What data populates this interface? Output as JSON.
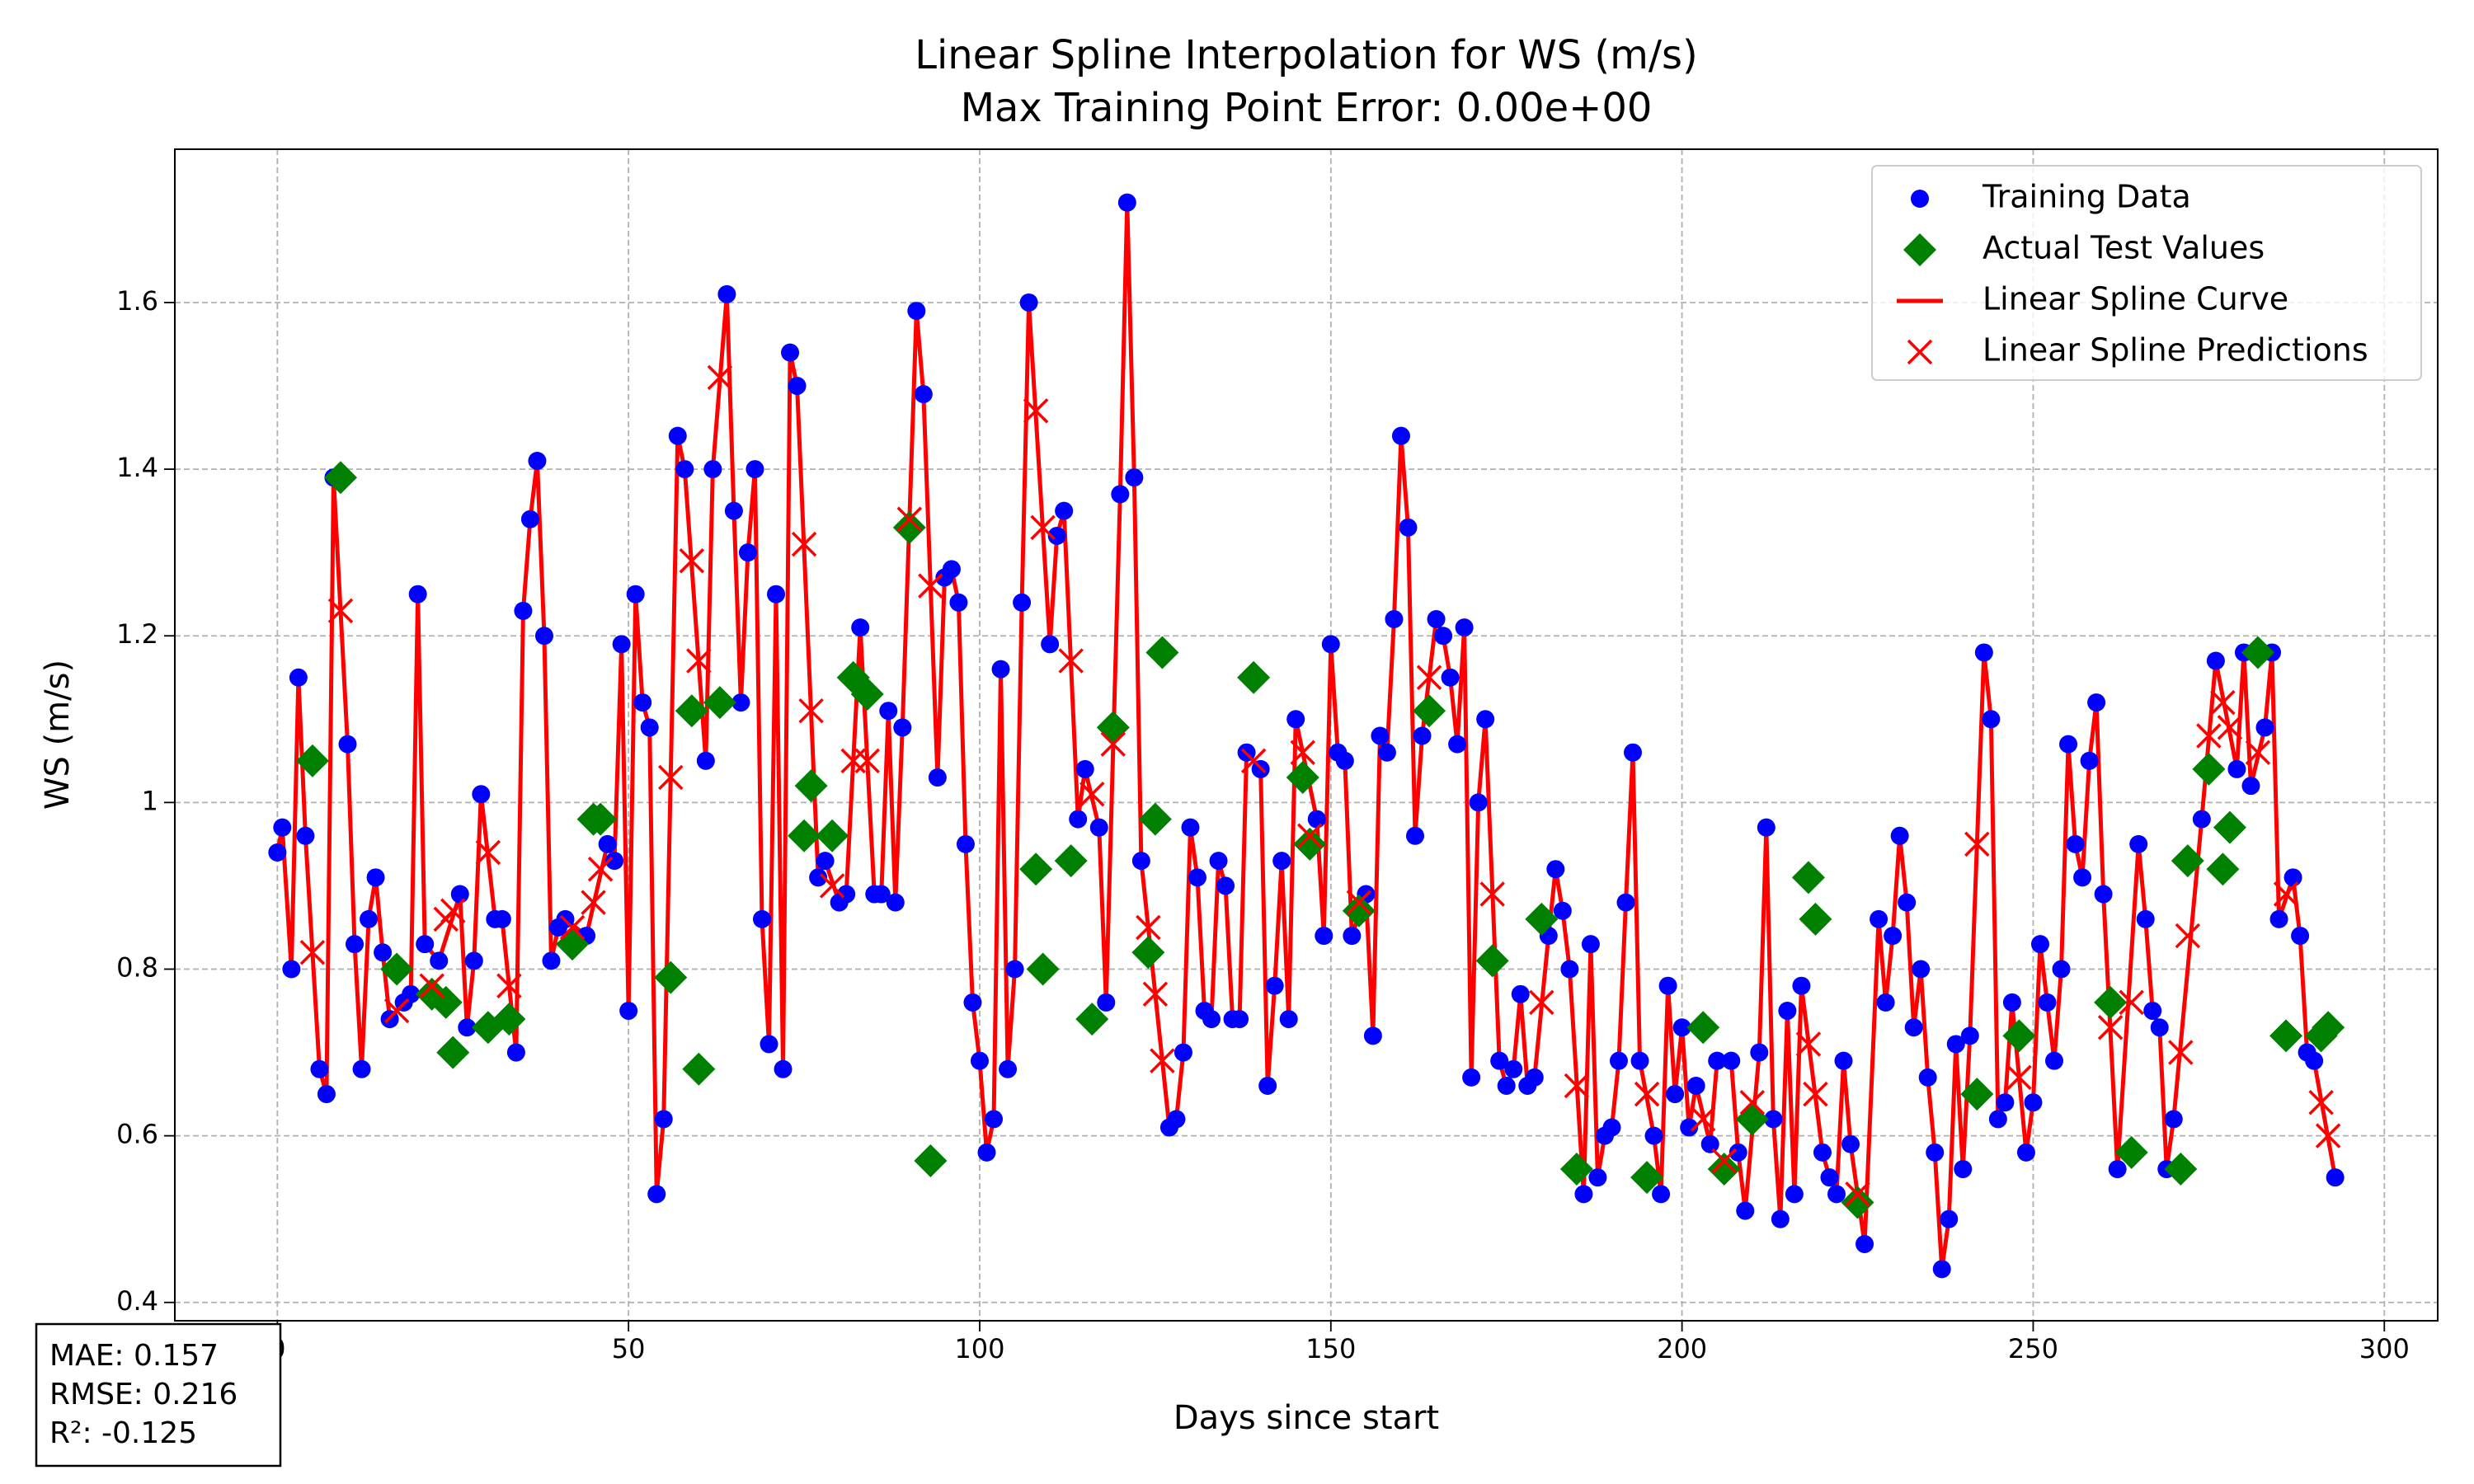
{
  "chart_data": {
    "type": "scatter",
    "title": "Linear Spline Interpolation for WS (m/s)",
    "subtitle": "Max Training Point Error: 0.00e+00",
    "xlabel": "Days since start",
    "ylabel": "WS (m/s)",
    "xlim": [
      -14.6,
      307.6
    ],
    "ylim": [
      0.378,
      1.784
    ],
    "xticks": [
      0,
      50,
      100,
      150,
      200,
      250,
      300
    ],
    "yticks": [
      0.4,
      0.6,
      0.8,
      1.0,
      1.2,
      1.4,
      1.6
    ],
    "grid": true,
    "legend": "upper right",
    "annotations": [
      "MAE: 0.157",
      "RMSE: 0.216",
      "R²: -0.125"
    ],
    "series": [
      {
        "name": "Training Data",
        "color": "#0000ff",
        "marker": "circle",
        "x": [
          0,
          0.7,
          2,
          3,
          4,
          6,
          7,
          8,
          10,
          11,
          12,
          13,
          14,
          15,
          16,
          18,
          19,
          20,
          21,
          23,
          26,
          27,
          28,
          29,
          31,
          32,
          34,
          35,
          36,
          37,
          38,
          39,
          40,
          41,
          44,
          47,
          48,
          49,
          50,
          51,
          52,
          53,
          54,
          55,
          57,
          58,
          61,
          62,
          64,
          65,
          66,
          67,
          68,
          69,
          70,
          71,
          72,
          73,
          74,
          77,
          78,
          80,
          81,
          83,
          85,
          86,
          87,
          88,
          89,
          91,
          92,
          94,
          95,
          96,
          97,
          98,
          99,
          100,
          101,
          102,
          103,
          104,
          105,
          106,
          107,
          110,
          111,
          112,
          114,
          115,
          117,
          118,
          120,
          121,
          122,
          123,
          127,
          128,
          129,
          130,
          131,
          132,
          133,
          134,
          135,
          136,
          137,
          138,
          140,
          141,
          142,
          143,
          144,
          145,
          148,
          149,
          150,
          151,
          152,
          153,
          155,
          156,
          157,
          158,
          159,
          160,
          161,
          162,
          163,
          165,
          166,
          167,
          168,
          169,
          170,
          171,
          172,
          174,
          175,
          176,
          177,
          178,
          179,
          181,
          182,
          183,
          184,
          186,
          187,
          188,
          189,
          190,
          191,
          192,
          193,
          194,
          196,
          197,
          198,
          199,
          200,
          201,
          202,
          204,
          205,
          207,
          208,
          209,
          211,
          212,
          213,
          214,
          215,
          216,
          217,
          220,
          221,
          222,
          223,
          224,
          226,
          228,
          229,
          230,
          231,
          232,
          233,
          234,
          235,
          236,
          237,
          238,
          239,
          240,
          241,
          243,
          244,
          245,
          246,
          247,
          249,
          250,
          251,
          252,
          253,
          254,
          255,
          256,
          257,
          258,
          259,
          260,
          262,
          265,
          266,
          267,
          268,
          269,
          270,
          274,
          276,
          279,
          280,
          281,
          283,
          284,
          285,
          287,
          288,
          289,
          290,
          293
        ],
        "values": [
          0.94,
          0.97,
          0.8,
          1.15,
          0.96,
          0.68,
          0.65,
          1.39,
          1.07,
          0.83,
          0.68,
          0.86,
          0.91,
          0.82,
          0.74,
          0.76,
          0.77,
          1.25,
          0.83,
          0.81,
          0.89,
          0.73,
          0.81,
          1.01,
          0.86,
          0.86,
          0.7,
          1.23,
          1.34,
          1.41,
          1.2,
          0.81,
          0.85,
          0.86,
          0.84,
          0.95,
          0.93,
          1.19,
          0.75,
          1.25,
          1.12,
          1.09,
          0.53,
          0.62,
          1.44,
          1.4,
          1.05,
          1.4,
          1.61,
          1.35,
          1.12,
          1.3,
          1.4,
          0.86,
          0.71,
          1.25,
          0.68,
          1.54,
          1.5,
          0.91,
          0.93,
          0.88,
          0.89,
          1.21,
          0.89,
          0.89,
          1.11,
          0.88,
          1.09,
          1.59,
          1.49,
          1.03,
          1.27,
          1.28,
          1.24,
          0.95,
          0.76,
          0.69,
          0.58,
          0.62,
          1.16,
          0.68,
          0.8,
          1.24,
          1.6,
          1.19,
          1.32,
          1.35,
          0.98,
          1.04,
          0.97,
          0.76,
          1.37,
          1.72,
          1.39,
          0.93,
          0.61,
          0.62,
          0.7,
          0.97,
          0.91,
          0.75,
          0.74,
          0.93,
          0.9,
          0.74,
          0.74,
          1.06,
          1.04,
          0.66,
          0.78,
          0.93,
          0.74,
          1.1,
          0.98,
          0.84,
          1.19,
          1.06,
          1.05,
          0.84,
          0.89,
          0.72,
          1.08,
          1.06,
          1.22,
          1.44,
          1.33,
          0.96,
          1.08,
          1.22,
          1.2,
          1.15,
          1.07,
          1.21,
          0.67,
          1.0,
          1.1,
          0.69,
          0.66,
          0.68,
          0.77,
          0.66,
          0.67,
          0.84,
          0.92,
          0.87,
          0.8,
          0.53,
          0.83,
          0.55,
          0.6,
          0.61,
          0.69,
          0.88,
          1.06,
          0.69,
          0.6,
          0.53,
          0.78,
          0.65,
          0.73,
          0.61,
          0.66,
          0.59,
          0.69,
          0.69,
          0.58,
          0.51,
          0.7,
          0.97,
          0.62,
          0.5,
          0.75,
          0.53,
          0.78,
          0.58,
          0.55,
          0.53,
          0.69,
          0.59,
          0.47,
          0.86,
          0.76,
          0.84,
          0.96,
          0.88,
          0.73,
          0.8,
          0.67,
          0.58,
          0.44,
          0.5,
          0.71,
          0.56,
          0.72,
          1.18,
          1.1,
          0.62,
          0.64,
          0.76,
          0.58,
          0.64,
          0.83,
          0.76,
          0.69,
          0.8,
          1.07,
          0.95,
          0.91,
          1.05,
          1.12,
          0.89,
          0.56,
          0.95,
          0.86,
          0.75,
          0.73,
          0.56,
          0.62,
          0.98,
          1.17,
          1.04,
          1.18,
          1.02,
          1.09,
          1.18,
          0.86,
          0.91,
          0.84,
          0.7,
          0.69,
          0.55
        ]
      },
      {
        "name": "Actual Test Values",
        "color": "#008000",
        "marker": "diamond",
        "x": [
          5,
          9,
          17,
          22,
          24,
          25,
          30,
          33,
          42,
          45,
          46,
          56,
          59,
          60,
          63,
          75,
          76,
          79,
          82,
          84,
          90,
          93,
          108,
          109,
          113,
          116,
          119,
          124,
          125,
          126,
          139,
          146,
          147,
          154,
          164,
          173,
          180,
          185,
          195,
          203,
          206,
          210,
          218,
          219,
          225,
          242,
          248,
          261,
          264,
          271,
          272,
          275,
          277,
          278,
          282,
          286,
          291,
          292
        ],
        "values": [
          1.05,
          1.39,
          0.8,
          0.77,
          0.76,
          0.7,
          0.73,
          0.74,
          0.83,
          0.98,
          0.98,
          0.79,
          1.11,
          0.68,
          1.12,
          0.96,
          1.02,
          0.96,
          1.15,
          1.13,
          1.33,
          0.57,
          0.92,
          0.8,
          0.93,
          0.74,
          1.09,
          0.82,
          0.98,
          1.18,
          1.15,
          1.03,
          0.95,
          0.87,
          1.11,
          0.81,
          0.86,
          0.56,
          0.55,
          0.73,
          0.56,
          0.62,
          0.91,
          0.86,
          0.52,
          0.65,
          0.72,
          0.76,
          0.58,
          0.56,
          0.93,
          1.04,
          0.92,
          0.97,
          1.18,
          0.72,
          0.72,
          0.73
        ]
      },
      {
        "name": "Linear Spline Curve",
        "color": "#ff0000",
        "marker": "line",
        "through": "series.0"
      },
      {
        "name": "Linear Spline Predictions",
        "color": "#ff0000",
        "marker": "cross",
        "x": [
          5,
          9,
          17,
          22,
          24,
          25,
          30,
          33,
          42,
          45,
          46,
          56,
          59,
          60,
          63,
          75,
          76,
          79,
          82,
          84,
          90,
          93,
          108,
          109,
          113,
          116,
          119,
          124,
          125,
          126,
          139,
          146,
          147,
          154,
          164,
          173,
          180,
          185,
          195,
          203,
          206,
          210,
          218,
          219,
          225,
          242,
          248,
          261,
          264,
          271,
          272,
          275,
          277,
          278,
          282,
          286,
          291,
          292
        ],
        "values": [
          0.82,
          1.23,
          0.75,
          0.78,
          0.86,
          0.87,
          0.94,
          0.78,
          0.85,
          0.88,
          0.92,
          1.03,
          1.29,
          1.17,
          1.51,
          1.31,
          1.11,
          0.9,
          1.05,
          1.05,
          1.34,
          1.26,
          1.47,
          1.33,
          1.17,
          1.01,
          1.07,
          0.85,
          0.77,
          0.69,
          1.05,
          1.06,
          0.96,
          0.88,
          1.15,
          0.89,
          0.76,
          0.66,
          0.65,
          0.62,
          0.57,
          0.64,
          0.71,
          0.65,
          0.53,
          0.95,
          0.67,
          0.73,
          0.76,
          0.7,
          0.84,
          1.08,
          1.12,
          1.09,
          1.06,
          0.89,
          0.64,
          0.6
        ]
      }
    ]
  }
}
